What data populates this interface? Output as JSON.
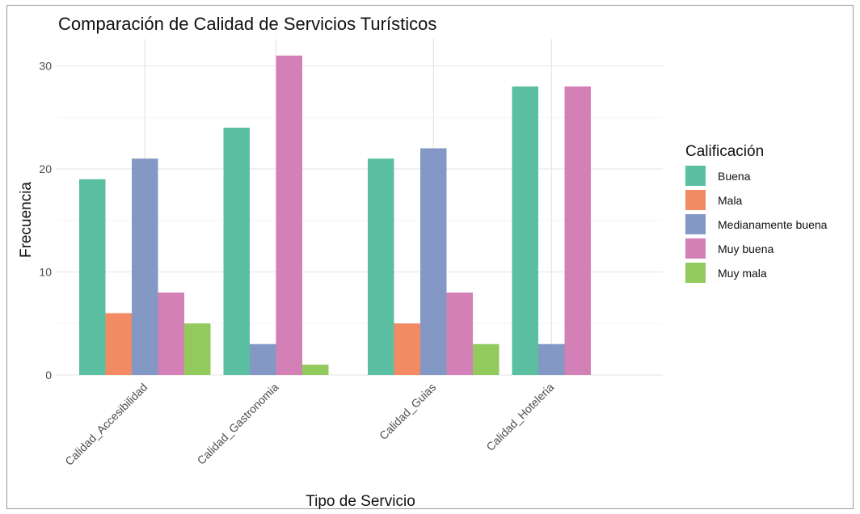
{
  "chart_data": {
    "type": "bar",
    "title": "Comparación de Calidad de Servicios Turísticos",
    "xlabel": "Tipo de Servicio",
    "ylabel": "Frecuencia",
    "ylim": [
      0,
      33
    ],
    "yticks": [
      0,
      10,
      20,
      30
    ],
    "grid": true,
    "legend_title": "Calificación",
    "legend_position": "right",
    "categories": [
      "Calidad_Accesibilidad",
      "Calidad_Gastronomia",
      "Calidad_Guias",
      "Calidad_Hoteleria"
    ],
    "series": [
      {
        "name": "Buena",
        "color": "#5bbfa2",
        "values": [
          19,
          24,
          21,
          28
        ]
      },
      {
        "name": "Mala",
        "color": "#f28a63",
        "values": [
          6,
          null,
          5,
          null
        ]
      },
      {
        "name": "Medianamente buena",
        "color": "#8398c4",
        "values": [
          21,
          3,
          22,
          3
        ]
      },
      {
        "name": "Muy buena",
        "color": "#d380b6",
        "values": [
          8,
          31,
          8,
          28
        ]
      },
      {
        "name": "Muy mala",
        "color": "#93ca5e",
        "values": [
          5,
          1,
          3,
          null
        ]
      }
    ]
  }
}
